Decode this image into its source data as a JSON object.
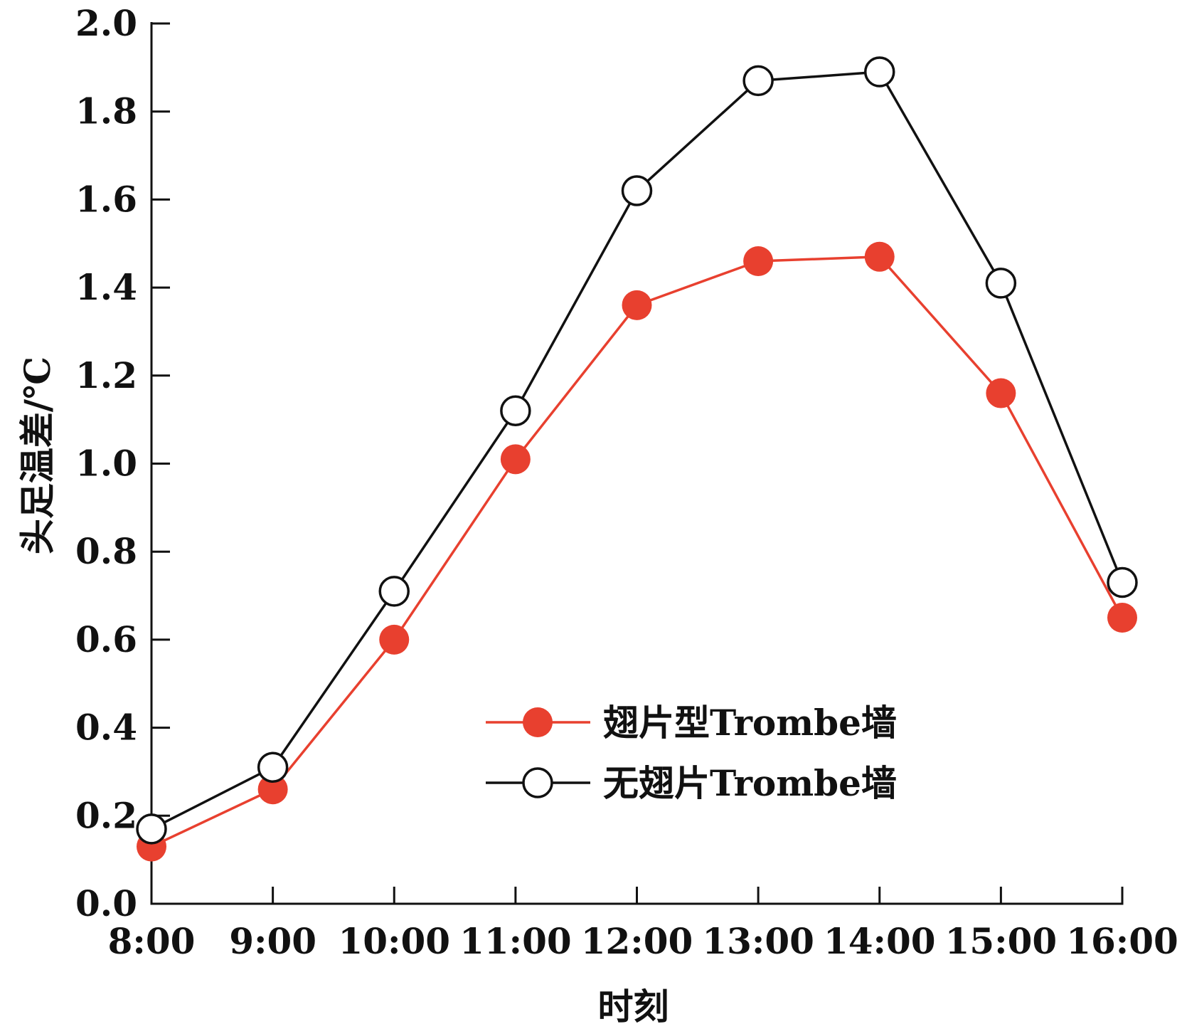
{
  "chart_data": {
    "type": "line",
    "title": "",
    "xlabel": "时刻",
    "ylabel": "头足温差/℃",
    "categories": [
      "8:00",
      "9:00",
      "10:00",
      "11:00",
      "12:00",
      "13:00",
      "14:00",
      "15:00",
      "16:00"
    ],
    "y_ticks": [
      "0.0",
      "0.2",
      "0.4",
      "0.6",
      "0.8",
      "1.0",
      "1.2",
      "1.4",
      "1.6",
      "1.8",
      "2.0"
    ],
    "ylim": [
      0,
      2.0
    ],
    "grid": false,
    "legend_position": "center-right",
    "series": [
      {
        "name": "翅片型Trombe墙",
        "values": [
          0.13,
          0.26,
          0.6,
          1.01,
          1.36,
          1.46,
          1.47,
          1.16,
          0.65
        ],
        "color": "#e8402f",
        "marker": "filled-circle"
      },
      {
        "name": "无翅片Trombe墙",
        "values": [
          0.17,
          0.31,
          0.71,
          1.12,
          1.62,
          1.87,
          1.89,
          1.41,
          0.73
        ],
        "color": "#111111",
        "marker": "open-circle"
      }
    ]
  }
}
